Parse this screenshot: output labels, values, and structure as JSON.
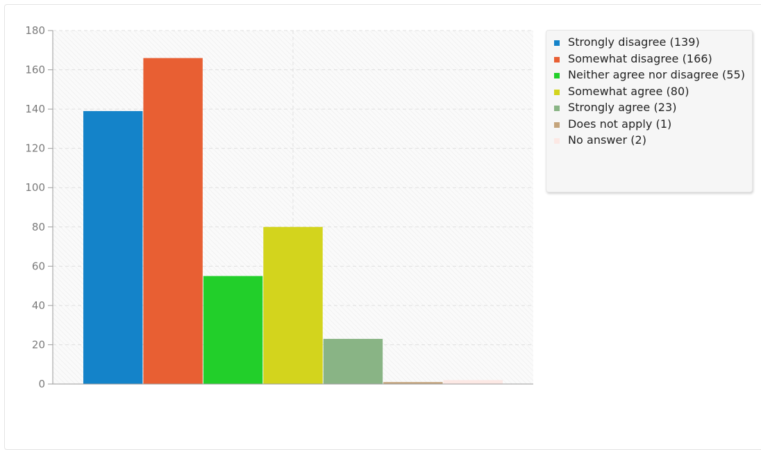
{
  "chart_data": {
    "type": "bar",
    "categories": [
      "Strongly disagree",
      "Somewhat disagree",
      "Neither agree nor disagree",
      "Somewhat agree",
      "Strongly agree",
      "Does not apply",
      "No answer"
    ],
    "values": [
      139,
      166,
      55,
      80,
      23,
      1,
      2
    ],
    "colors": [
      "#1483c9",
      "#e85f33",
      "#22cf2a",
      "#d3d41d",
      "#89b485",
      "#c4a47c",
      "#fce8e4"
    ],
    "ylim": [
      0,
      180
    ],
    "yticks": [
      0,
      20,
      40,
      60,
      80,
      100,
      120,
      140,
      160,
      180
    ],
    "ytick_labels": [
      "0",
      "20",
      "40",
      "60",
      "80",
      "100",
      "120",
      "140",
      "160",
      "180"
    ],
    "grid": true,
    "legend_position": "right",
    "legend": [
      "Strongly disagree (139)",
      "Somewhat disagree (166)",
      "Neither agree nor disagree (55)",
      "Somewhat agree (80)",
      "Strongly agree (23)",
      "Does not apply (1)",
      "No answer (2)"
    ],
    "title": "",
    "xlabel": "",
    "ylabel": ""
  }
}
